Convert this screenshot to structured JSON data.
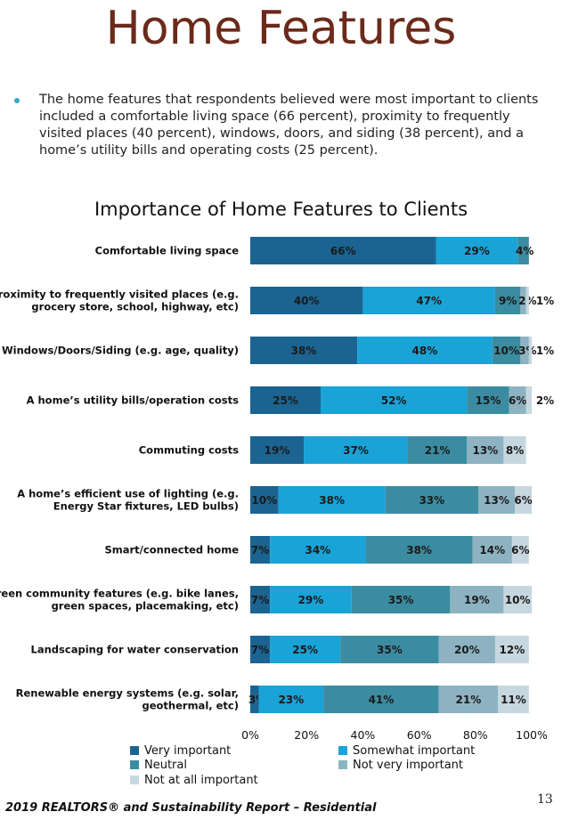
{
  "page": {
    "title": "Home Features",
    "bullet": "The home features that respondents believed were most important to clients included a comfortable living space (66 percent), proximity to frequently visited places (40 percent), windows, doors, and siding (38 percent), and a home’s utility bills and operating costs (25 percent).",
    "footer": "2019 REALTORS® and Sustainability Report – Residential",
    "page_number": "13"
  },
  "chart_data": {
    "type": "bar",
    "orientation": "horizontal",
    "stacked": true,
    "title": "Importance of Home Features to Clients",
    "categories": [
      [
        "Comfortable living space"
      ],
      [
        "Proximity to frequently visited places (e.g.",
        "grocery store, school, highway, etc)"
      ],
      [
        "Windows/Doors/Siding (e.g. age, quality)"
      ],
      [
        "A home’s utility bills/operation costs"
      ],
      [
        "Commuting costs"
      ],
      [
        "A home’s efficient use of lighting (e.g.",
        "Energy Star fixtures, LED bulbs)"
      ],
      [
        "Smart/connected home"
      ],
      [
        "Green community features (e.g. bike lanes,",
        "green spaces, placemaking, etc)"
      ],
      [
        "Landscaping for water conservation"
      ],
      [
        "Renewable energy systems (e.g. solar,",
        "geothermal, etc)"
      ]
    ],
    "series": [
      {
        "name": "Very important",
        "color": "#1b6491",
        "values": [
          66,
          40,
          38,
          25,
          19,
          10,
          7,
          7,
          7,
          3
        ]
      },
      {
        "name": "Somewhat important",
        "color": "#1aa3d6",
        "values": [
          29,
          47,
          48,
          52,
          37,
          38,
          34,
          29,
          25,
          23
        ]
      },
      {
        "name": "Neutral",
        "color": "#3b8ca0",
        "values": [
          4,
          9,
          10,
          15,
          21,
          33,
          38,
          35,
          35,
          41
        ]
      },
      {
        "name": "Not very important",
        "color": "#8db3c2",
        "values": [
          0,
          2,
          3,
          6,
          13,
          13,
          14,
          19,
          20,
          21
        ]
      },
      {
        "name": "Not at all important",
        "color": "#c7d7df",
        "values": [
          0,
          1,
          1,
          2,
          8,
          6,
          6,
          10,
          12,
          11
        ]
      }
    ],
    "labels": [
      [
        "66%",
        "29%",
        "4%",
        "",
        ""
      ],
      [
        "40%",
        "47%",
        "9%",
        "2%",
        "1%"
      ],
      [
        "38%",
        "48%",
        "10%",
        "3%",
        "1%"
      ],
      [
        "25%",
        "52%",
        "15%",
        "6%",
        "2%"
      ],
      [
        "19%",
        "37%",
        "21%",
        "13%",
        "8%"
      ],
      [
        "10%",
        "38%",
        "33%",
        "13%",
        "6%"
      ],
      [
        "7%",
        "34%",
        "38%",
        "14%",
        "6%"
      ],
      [
        "7%",
        "29%",
        "35%",
        "19%",
        "10%"
      ],
      [
        "7%",
        "25%",
        "35%",
        "20%",
        "12%"
      ],
      [
        "3%",
        "23%",
        "41%",
        "21%",
        "11%"
      ]
    ],
    "xlim": [
      0,
      100
    ],
    "xticks": [
      "0%",
      "20%",
      "40%",
      "60%",
      "80%",
      "100%"
    ],
    "legend_position": "bottom"
  }
}
